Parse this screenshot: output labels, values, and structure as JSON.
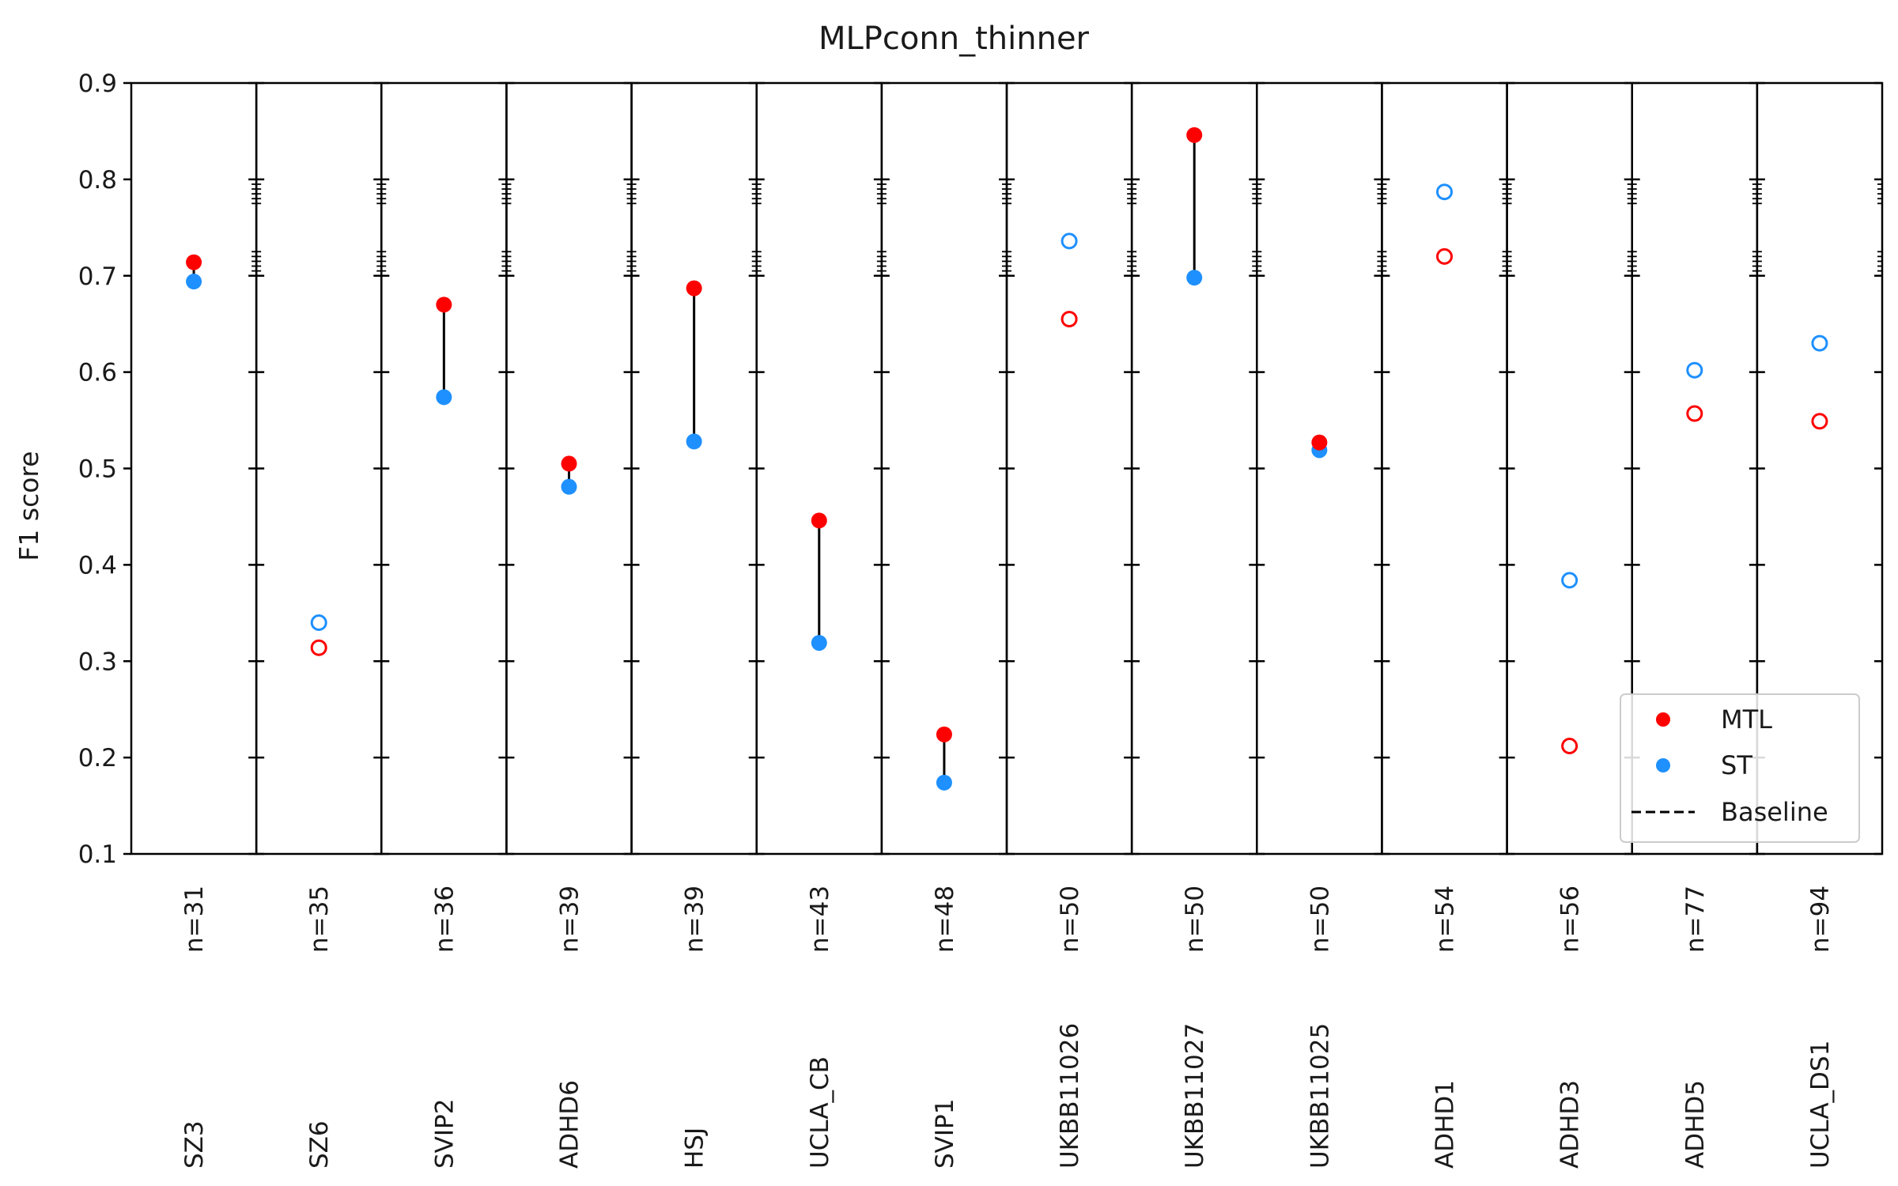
{
  "chart_data": {
    "type": "scatter",
    "title": "MLPconn_thinner",
    "xlabel": "",
    "ylabel": "F1 score",
    "ylim": [
      0.1,
      0.9
    ],
    "yticks": [
      "0.1",
      "0.2",
      "0.3",
      "0.4",
      "0.5",
      "0.6",
      "0.7",
      "0.8",
      "0.9"
    ],
    "grid": false,
    "legend": {
      "placement": "lower-right",
      "entries": [
        "MTL",
        "ST",
        "Baseline"
      ]
    },
    "colors": {
      "MTL": "#ff0000",
      "ST": "#1e90ff",
      "baseline": "#000000"
    },
    "panels": [
      {
        "name": "SZ3",
        "n_label": "n=31",
        "MTL": 0.714,
        "ST": 0.694,
        "filled": true
      },
      {
        "name": "SZ6",
        "n_label": "n=35",
        "MTL": 0.314,
        "ST": 0.34,
        "filled": false
      },
      {
        "name": "SVIP2",
        "n_label": "n=36",
        "MTL": 0.67,
        "ST": 0.574,
        "filled": true
      },
      {
        "name": "ADHD6",
        "n_label": "n=39",
        "MTL": 0.505,
        "ST": 0.481,
        "filled": true
      },
      {
        "name": "HSJ",
        "n_label": "n=39",
        "MTL": 0.687,
        "ST": 0.528,
        "filled": true
      },
      {
        "name": "UCLA_CB",
        "n_label": "n=43",
        "MTL": 0.446,
        "ST": 0.319,
        "filled": true
      },
      {
        "name": "SVIP1",
        "n_label": "n=48",
        "MTL": 0.224,
        "ST": 0.174,
        "filled": true
      },
      {
        "name": "UKBB11026",
        "n_label": "n=50",
        "MTL": 0.655,
        "ST": 0.736,
        "filled": false
      },
      {
        "name": "UKBB11027",
        "n_label": "n=50",
        "MTL": 0.846,
        "ST": 0.698,
        "filled": true
      },
      {
        "name": "UKBB11025",
        "n_label": "n=50",
        "MTL": 0.527,
        "ST": 0.519,
        "filled": true
      },
      {
        "name": "ADHD1",
        "n_label": "n=54",
        "MTL": 0.72,
        "ST": 0.787,
        "filled": false
      },
      {
        "name": "ADHD3",
        "n_label": "n=56",
        "MTL": 0.212,
        "ST": 0.384,
        "filled": false
      },
      {
        "name": "ADHD5",
        "n_label": "n=77",
        "MTL": 0.557,
        "ST": 0.602,
        "filled": false
      },
      {
        "name": "UCLA_DS1",
        "n_label": "n=94",
        "MTL": 0.549,
        "ST": 0.63,
        "filled": false
      }
    ]
  }
}
